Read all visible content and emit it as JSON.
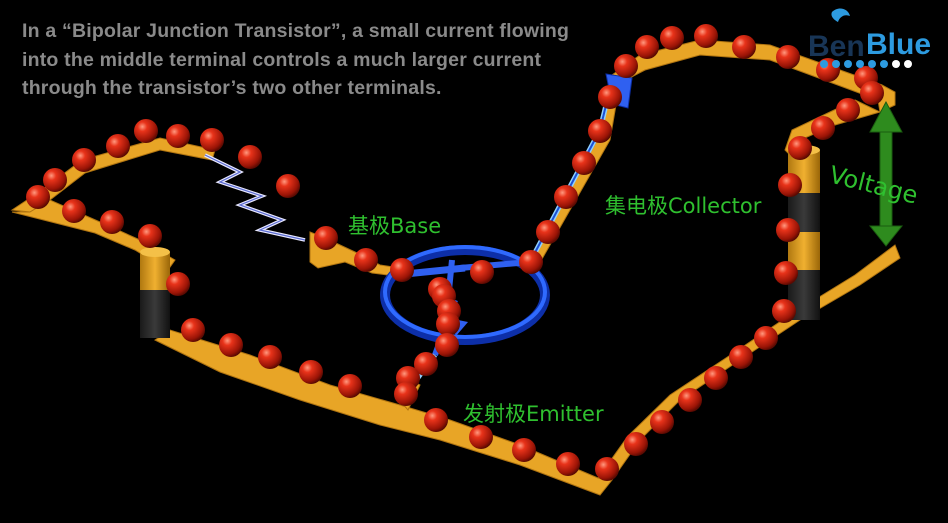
{
  "caption": "In a “Bipolar Junction Transistor”, a small current flowing into the middle terminal controls a much larger current through the transistor’s two other terminals.",
  "labels": {
    "base": "基极Base",
    "collector": "集电极Collector",
    "emitter": "发射极Emitter",
    "voltage": "Voltage"
  },
  "logo": {
    "part1": "Ben",
    "part2": "Blue"
  },
  "colors": {
    "wire": "#e8a526",
    "electron": "#d8200e",
    "transistor": "#1a4fd6",
    "label_green": "#2fc02f",
    "voltage_arrow": "#2e8b1e",
    "caption": "#8a8a8a"
  }
}
